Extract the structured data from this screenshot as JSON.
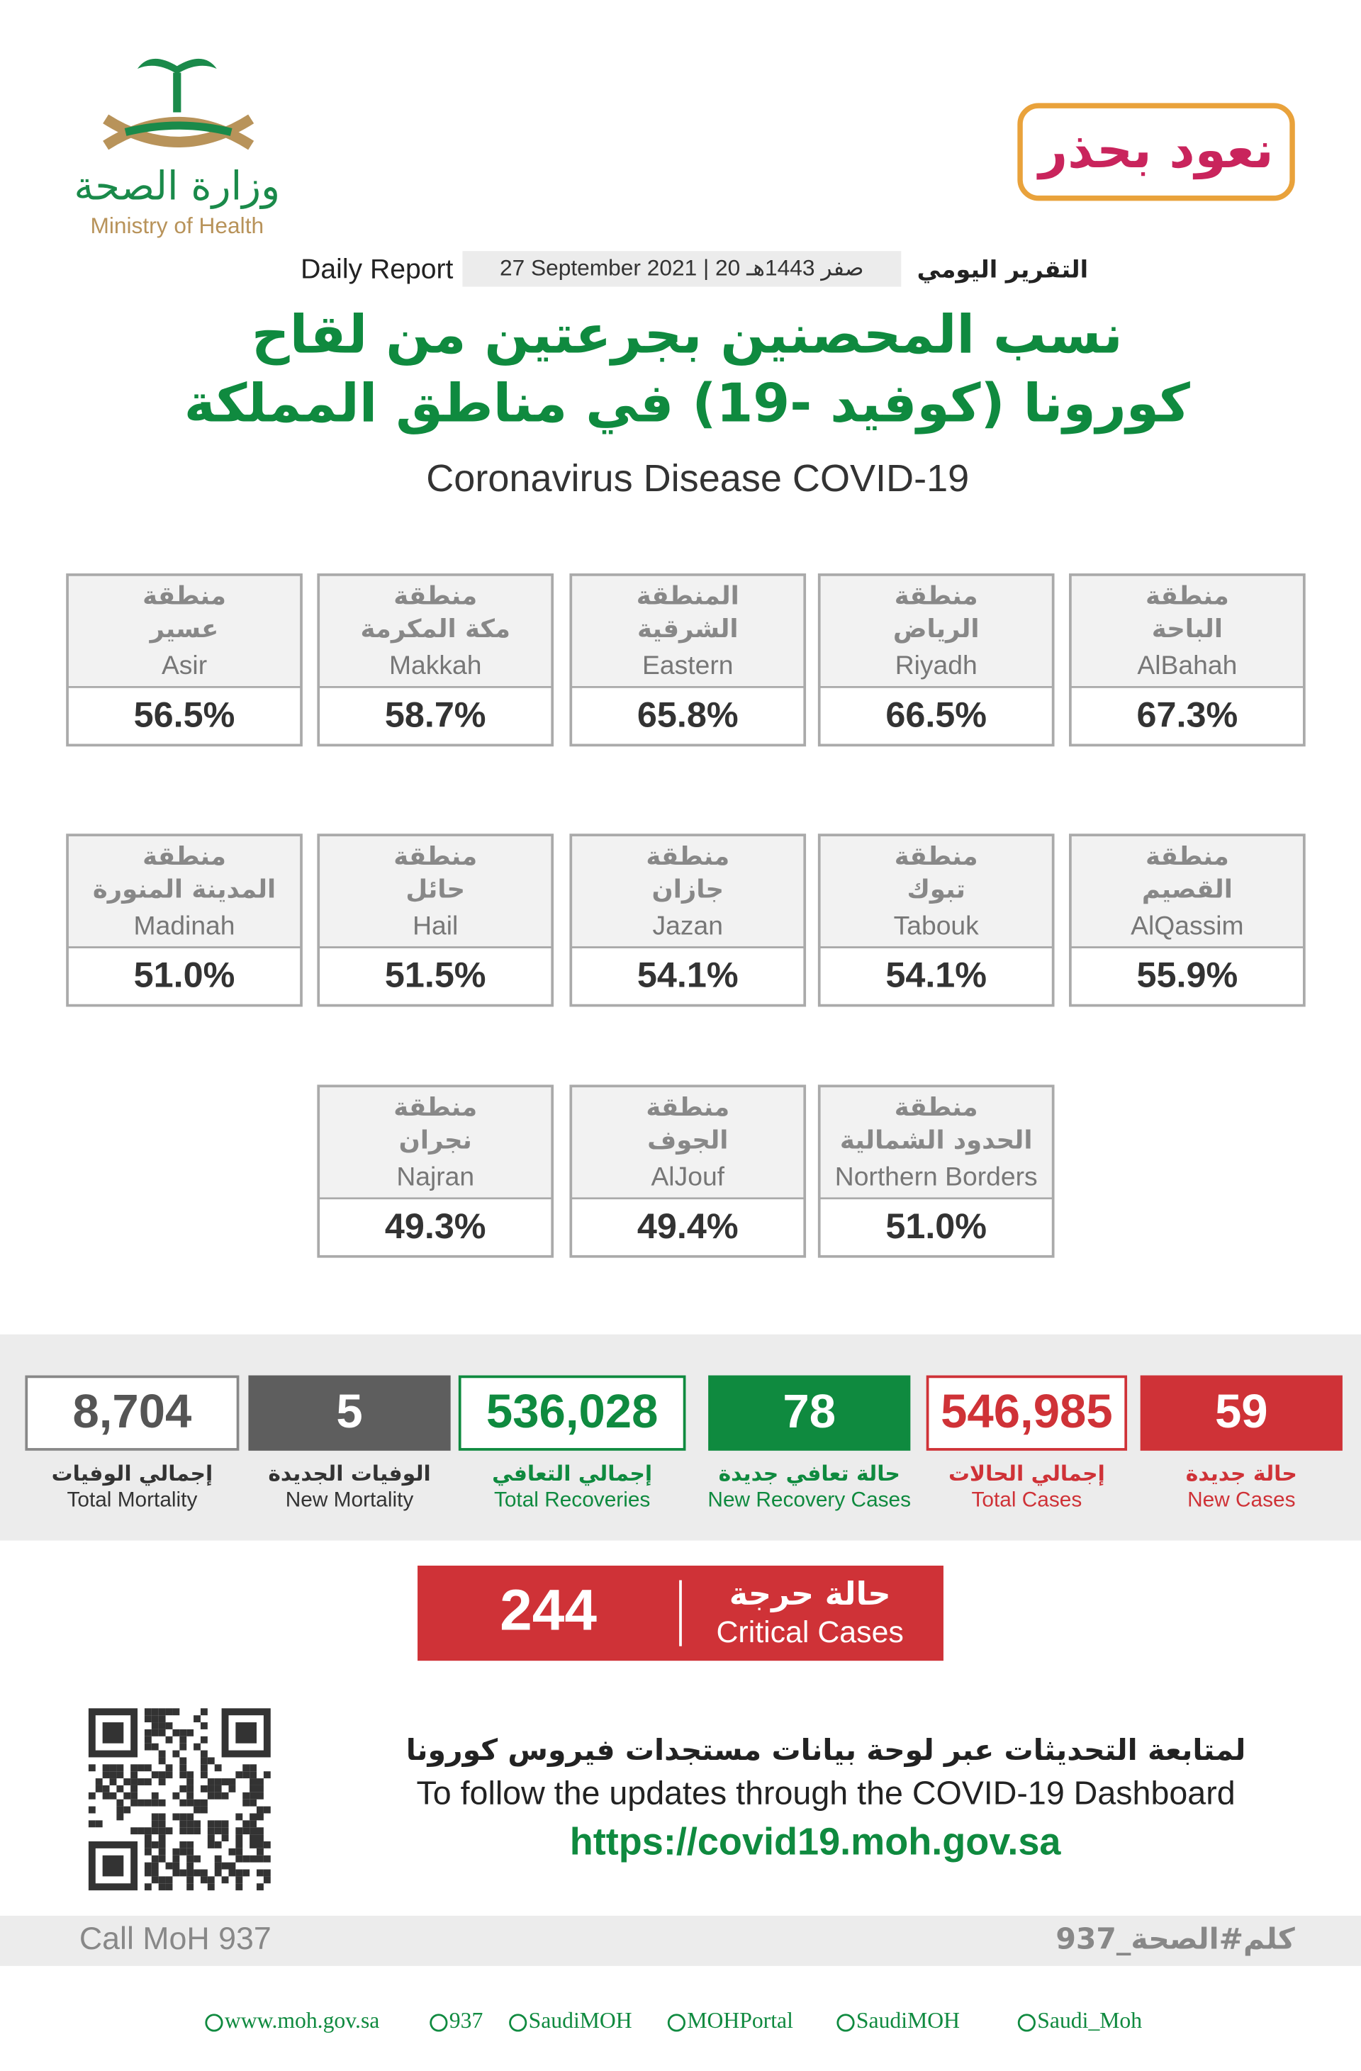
{
  "header": {
    "ministry_ar": "وزارة الصحة",
    "ministry_en": "Ministry of Health",
    "campaign": "نعود بحذر",
    "report_en": "Daily Report",
    "date": "27 September 2021 | 20 صفر 1443هـ",
    "report_ar": "التقرير اليومي",
    "title_ar_1": "نسب المحصنين بجرعتين من لقاح",
    "title_ar_2": "كورونا (كوفيد -19) في مناطق المملكة",
    "subtitle": "Coronavirus Disease COVID-19"
  },
  "regions": [
    {
      "label": "منطقة",
      "name_ar": "الباحة",
      "name_en": "AlBahah",
      "value": "67.3%"
    },
    {
      "label": "منطقة",
      "name_ar": "الرياض",
      "name_en": "Riyadh",
      "value": "66.5%"
    },
    {
      "label": "المنطقة",
      "name_ar": "الشرقية",
      "name_en": "Eastern",
      "value": "65.8%"
    },
    {
      "label": "منطقة",
      "name_ar": "مكة المكرمة",
      "name_en": "Makkah",
      "value": "58.7%"
    },
    {
      "label": "منطقة",
      "name_ar": "عسير",
      "name_en": "Asir",
      "value": "56.5%"
    },
    {
      "label": "منطقة",
      "name_ar": "القصيم",
      "name_en": "AlQassim",
      "value": "55.9%"
    },
    {
      "label": "منطقة",
      "name_ar": "تبوك",
      "name_en": "Tabouk",
      "value": "54.1%"
    },
    {
      "label": "منطقة",
      "name_ar": "جازان",
      "name_en": "Jazan",
      "value": "54.1%"
    },
    {
      "label": "منطقة",
      "name_ar": "حائل",
      "name_en": "Hail",
      "value": "51.5%"
    },
    {
      "label": "منطقة",
      "name_ar": "المدينة المنورة",
      "name_en": "Madinah",
      "value": "51.0%"
    },
    {
      "label": "منطقة",
      "name_ar": "الحدود الشمالية",
      "name_en": "Northern Borders",
      "value": "51.0%"
    },
    {
      "label": "منطقة",
      "name_ar": "الجوف",
      "name_en": "AlJouf",
      "value": "49.4%"
    },
    {
      "label": "منطقة",
      "name_ar": "نجران",
      "name_en": "Najran",
      "value": "49.3%"
    }
  ],
  "stats": [
    {
      "value": "59",
      "label_ar": "حالة جديدة",
      "label_en": "New Cases"
    },
    {
      "value": "546,985",
      "label_ar": "إجمالي الحالات",
      "label_en": "Total Cases"
    },
    {
      "value": "78",
      "label_ar": "حالة تعافي جديدة",
      "label_en": "New Recovery Cases"
    },
    {
      "value": "536,028",
      "label_ar": "إجمالي التعافي",
      "label_en": "Total Recoveries"
    },
    {
      "value": "5",
      "label_ar": "الوفيات الجديدة",
      "label_en": "New Mortality"
    },
    {
      "value": "8,704",
      "label_ar": "إجمالي الوفيات",
      "label_en": "Total Mortality"
    }
  ],
  "critical": {
    "value": "244",
    "label_ar": "حالة حرجة",
    "label_en": "Critical Cases"
  },
  "dashboard": {
    "ar": "لمتابعة التحديثات عبر لوحة بيانات مستجدات فيروس كورونا",
    "en": "To follow the updates through the COVID-19 Dashboard",
    "url": "https://covid19.moh.gov.sa"
  },
  "footer": {
    "call": "Call MoH 937",
    "hashtag": "كلم#الصحة_937",
    "links": [
      "www.moh.gov.sa",
      "937",
      "SaudiMOH",
      "MOHPortal",
      "SaudiMOH",
      "Saudi_Moh"
    ]
  }
}
